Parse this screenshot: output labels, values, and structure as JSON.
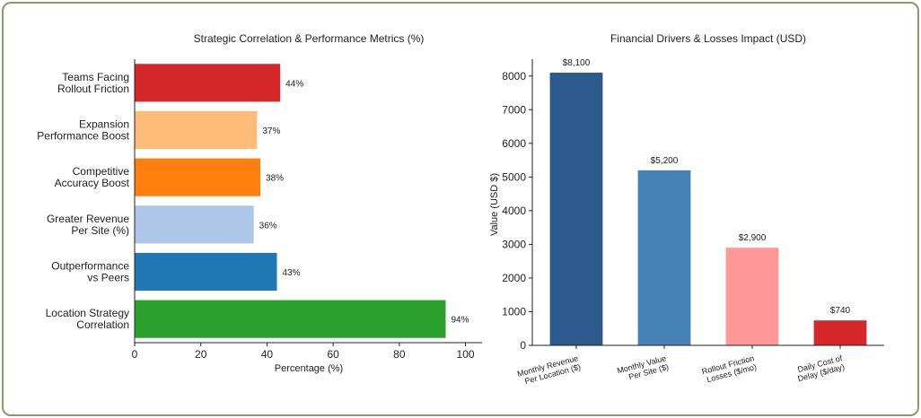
{
  "chart_data": [
    {
      "type": "bar",
      "orientation": "horizontal",
      "title": "Strategic Correlation & Performance Metrics (%)",
      "xlabel": "Percentage (%)",
      "ylabel": "",
      "xlim": [
        0,
        105
      ],
      "xticks": [
        "0",
        "20",
        "40",
        "60",
        "80",
        "100"
      ],
      "grid": false,
      "categories": [
        [
          "Teams Facing",
          "Rollout Friction"
        ],
        [
          "Expansion",
          "Performance Boost"
        ],
        [
          "Competitive",
          "Accuracy Boost"
        ],
        [
          "Greater Revenue",
          "Per Site (%)"
        ],
        [
          "Outperformance",
          "vs Peers"
        ],
        [
          "Location Strategy",
          "Correlation"
        ]
      ],
      "values": [
        44,
        37,
        38,
        36,
        43,
        94
      ],
      "data_labels": [
        "44%",
        "37%",
        "38%",
        "36%",
        "43%",
        "94%"
      ],
      "colors": [
        "#d62728",
        "#ffbb78",
        "#ff7f0e",
        "#aec7e8",
        "#1f77b4",
        "#2ca02c"
      ]
    },
    {
      "type": "bar",
      "orientation": "vertical",
      "title": "Financial Drivers & Losses Impact (USD)",
      "xlabel": "",
      "ylabel": "Value (USD $)",
      "ylim": [
        0,
        8500
      ],
      "yticks": [
        "0",
        "1000",
        "2000",
        "3000",
        "4000",
        "5000",
        "6000",
        "7000",
        "8000"
      ],
      "grid": false,
      "categories": [
        [
          "Monthly Revenue",
          "Per Location ($)"
        ],
        [
          "Monthly Value",
          "Per Site ($)"
        ],
        [
          "Rollout Friction",
          "Losses ($/mo)"
        ],
        [
          "Daily Cost of",
          "Delay ($/day)"
        ]
      ],
      "values": [
        8100,
        5200,
        2900,
        740
      ],
      "data_labels": [
        "$8,100",
        "$5,200",
        "$2,900",
        "$740"
      ],
      "colors": [
        "#2c5a8c",
        "#4682b4",
        "#ff9999",
        "#d62728"
      ]
    }
  ]
}
